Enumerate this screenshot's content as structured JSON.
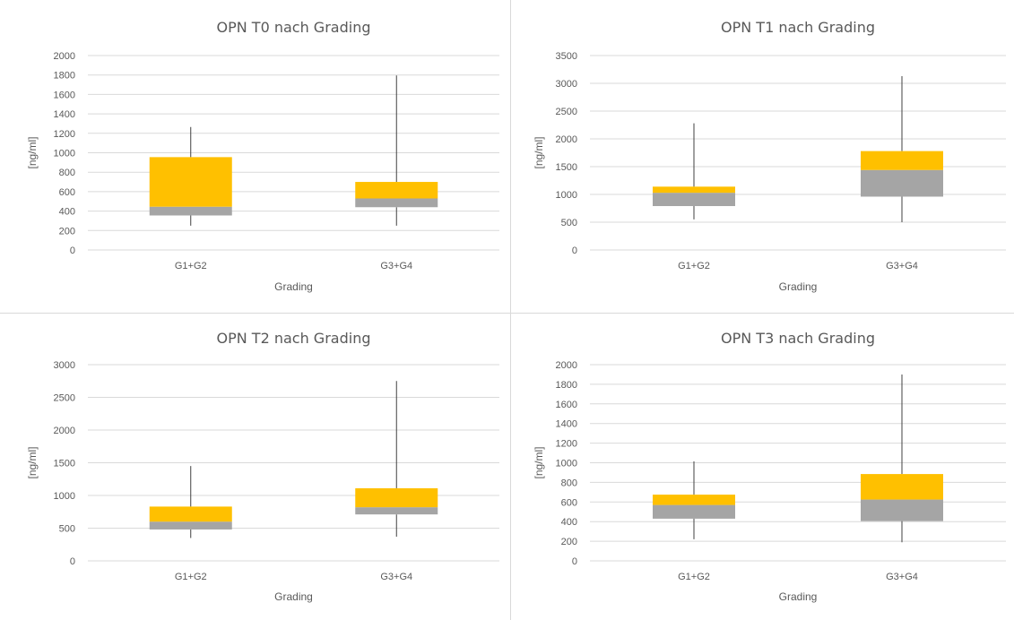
{
  "chart_data": [
    {
      "type": "box",
      "title": "OPN T0 nach Grading",
      "xlabel": "Grading",
      "ylabel": "[ng/ml]",
      "ylim": [
        0,
        2000
      ],
      "yticks": [
        0,
        200,
        400,
        600,
        800,
        1000,
        1200,
        1400,
        1600,
        1800,
        2000
      ],
      "grid": true,
      "categories": [
        "G1+G2",
        "G3+G4"
      ],
      "boxes": [
        {
          "category": "G1+G2",
          "min": 250,
          "q1": 355,
          "median": 445,
          "q3": 955,
          "max": 1265
        },
        {
          "category": "G3+G4",
          "min": 250,
          "q1": 440,
          "median": 530,
          "q3": 700,
          "max": 1795
        }
      ],
      "colors": {
        "lower_box": "#a5a5a5",
        "upper_box": "#ffc000",
        "whisker": "#404040"
      }
    },
    {
      "type": "box",
      "title": "OPN T1 nach Grading",
      "xlabel": "Grading",
      "ylabel": "[ng/ml]",
      "ylim": [
        0,
        3500
      ],
      "yticks": [
        0,
        500,
        1000,
        1500,
        2000,
        2500,
        3000,
        3500
      ],
      "grid": true,
      "categories": [
        "G1+G2",
        "G3+G4"
      ],
      "boxes": [
        {
          "category": "G1+G2",
          "min": 550,
          "q1": 790,
          "median": 1030,
          "q3": 1140,
          "max": 2280
        },
        {
          "category": "G3+G4",
          "min": 500,
          "q1": 960,
          "median": 1440,
          "q3": 1780,
          "max": 3130
        }
      ],
      "colors": {
        "lower_box": "#a5a5a5",
        "upper_box": "#ffc000",
        "whisker": "#404040"
      }
    },
    {
      "type": "box",
      "title": "OPN T2 nach Grading",
      "xlabel": "Grading",
      "ylabel": "[ng/ml]",
      "ylim": [
        0,
        3000
      ],
      "yticks": [
        0,
        500,
        1000,
        1500,
        2000,
        2500,
        3000
      ],
      "grid": true,
      "categories": [
        "G1+G2",
        "G3+G4"
      ],
      "boxes": [
        {
          "category": "G1+G2",
          "min": 350,
          "q1": 480,
          "median": 600,
          "q3": 830,
          "max": 1450
        },
        {
          "category": "G3+G4",
          "min": 370,
          "q1": 710,
          "median": 820,
          "q3": 1110,
          "max": 2750
        }
      ],
      "colors": {
        "lower_box": "#a5a5a5",
        "upper_box": "#ffc000",
        "whisker": "#404040"
      }
    },
    {
      "type": "box",
      "title": "OPN T3 nach Grading",
      "xlabel": "Grading",
      "ylabel": "[ng/ml]",
      "ylim": [
        0,
        2000
      ],
      "yticks": [
        0,
        200,
        400,
        600,
        800,
        1000,
        1200,
        1400,
        1600,
        1800,
        2000
      ],
      "grid": true,
      "categories": [
        "G1+G2",
        "G3+G4"
      ],
      "boxes": [
        {
          "category": "G1+G2",
          "min": 220,
          "q1": 430,
          "median": 570,
          "q3": 675,
          "max": 1015
        },
        {
          "category": "G3+G4",
          "min": 190,
          "q1": 405,
          "median": 625,
          "q3": 885,
          "max": 1900
        }
      ],
      "colors": {
        "lower_box": "#a5a5a5",
        "upper_box": "#ffc000",
        "whisker": "#404040"
      }
    }
  ]
}
